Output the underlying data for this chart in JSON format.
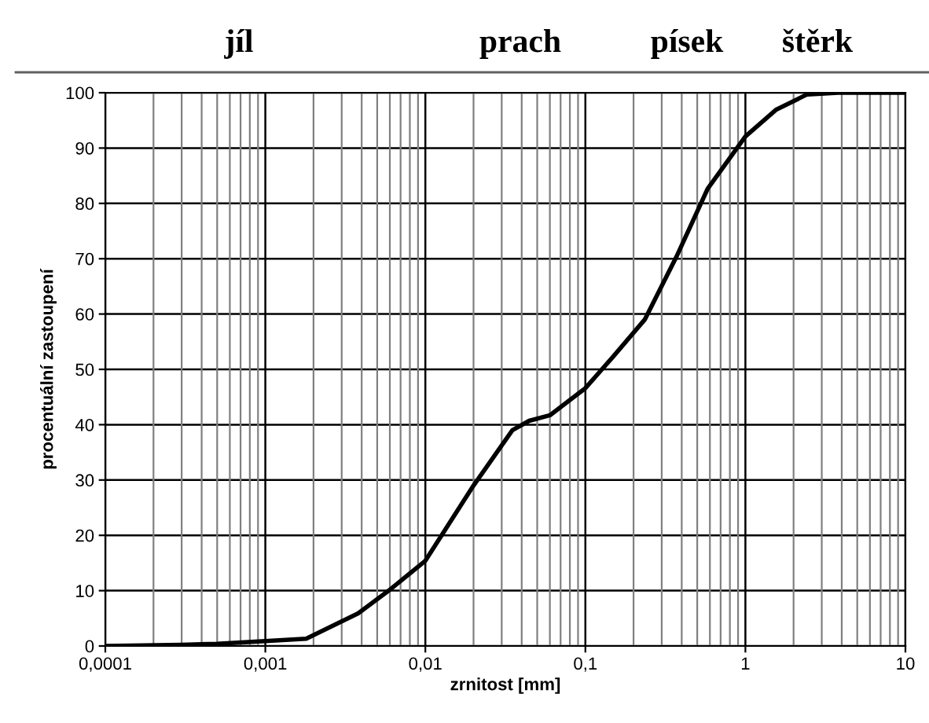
{
  "chart_data": {
    "type": "line",
    "xlabel": "zrnitost [mm]",
    "ylabel": "procentuální zastoupení",
    "x": [
      0.0001,
      0.0003,
      0.0005,
      0.001,
      0.0018,
      0.0038,
      0.0059,
      0.01,
      0.02,
      0.035,
      0.0445,
      0.06,
      0.1,
      0.149,
      0.235,
      0.37,
      0.58,
      1,
      1.55,
      2.43,
      3.8,
      10
    ],
    "series": [
      {
        "color": "#000000",
        "values": [
          0,
          0.2,
          0.4,
          0.9,
          1.3,
          5.9,
          10,
          15.4,
          29,
          39,
          40.7,
          41.7,
          46.6,
          52.3,
          59,
          70.3,
          82.6,
          92.1,
          96.9,
          99.7,
          100,
          100
        ]
      }
    ],
    "log": "x",
    "xlim": [
      0.0001,
      10
    ],
    "ylim": [
      0,
      100
    ],
    "xticks": [
      {
        "value": 0.0001,
        "label": "0,0001"
      },
      {
        "value": 0.001,
        "label": "0,001"
      },
      {
        "value": 0.01,
        "label": "0,01"
      },
      {
        "value": 0.1,
        "label": "0,1"
      },
      1,
      10
    ],
    "yticks": [
      0,
      10,
      20,
      30,
      40,
      50,
      60,
      70,
      80,
      90,
      100
    ],
    "grid": true,
    "marker": "none",
    "line_style": "solid",
    "annotations": [
      "jíl",
      "prach",
      "písek",
      "štěrk"
    ]
  }
}
